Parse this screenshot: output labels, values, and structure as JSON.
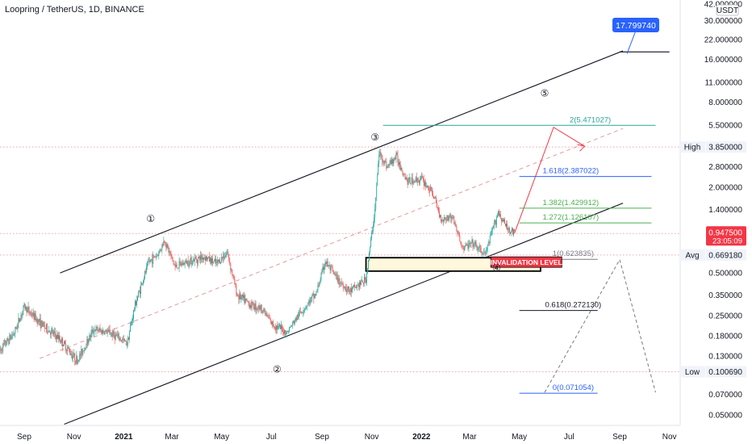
{
  "header": {
    "title": "Loopring / TetherUS, 1D, BINANCE",
    "unit": "USDT"
  },
  "chart_data": {
    "type": "candlestick",
    "scale": "log",
    "y_ticks": [
      "42.000000",
      "30.000000",
      "22.000000",
      "16.000000",
      "11.000000",
      "8.000000",
      "5.500000",
      "3.850000",
      "2.800000",
      "2.000000",
      "1.400000",
      "0.669180",
      "0.500000",
      "0.350000",
      "0.250000",
      "0.180000",
      "0.130000",
      "0.100690",
      "0.070000",
      "0.050000"
    ],
    "y_tick_values": [
      42,
      30,
      22,
      16,
      11,
      8,
      5.5,
      3.85,
      2.8,
      2.0,
      1.4,
      0.66918,
      0.5,
      0.35,
      0.25,
      0.18,
      0.13,
      0.10069,
      0.07,
      0.05
    ],
    "x_ticks": [
      {
        "label": "Sep",
        "date": "2020-09-01",
        "bold": false
      },
      {
        "label": "Nov",
        "date": "2020-11-01",
        "bold": false
      },
      {
        "label": "2021",
        "date": "2021-01-01",
        "bold": true
      },
      {
        "label": "Mar",
        "date": "2021-03-01",
        "bold": false
      },
      {
        "label": "May",
        "date": "2021-05-01",
        "bold": false
      },
      {
        "label": "Jul",
        "date": "2021-07-01",
        "bold": false
      },
      {
        "label": "Sep",
        "date": "2021-09-01",
        "bold": false
      },
      {
        "label": "Nov",
        "date": "2021-11-01",
        "bold": false
      },
      {
        "label": "2022",
        "date": "2022-01-01",
        "bold": true
      },
      {
        "label": "Mar",
        "date": "2022-03-01",
        "bold": false
      },
      {
        "label": "May",
        "date": "2022-05-01",
        "bold": false
      },
      {
        "label": "Jul",
        "date": "2022-07-01",
        "bold": false
      },
      {
        "label": "Sep",
        "date": "2022-09-01",
        "bold": false
      },
      {
        "label": "Nov",
        "date": "2022-11-01",
        "bold": false
      }
    ],
    "price_path": [
      {
        "date": "2020-08-01",
        "price": 0.14
      },
      {
        "date": "2020-08-20",
        "price": 0.19
      },
      {
        "date": "2020-09-01",
        "price": 0.29
      },
      {
        "date": "2020-09-25",
        "price": 0.21
      },
      {
        "date": "2020-10-15",
        "price": 0.17
      },
      {
        "date": "2020-11-05",
        "price": 0.12
      },
      {
        "date": "2020-11-25",
        "price": 0.2
      },
      {
        "date": "2020-12-15",
        "price": 0.19
      },
      {
        "date": "2021-01-05",
        "price": 0.16
      },
      {
        "date": "2021-01-15",
        "price": 0.3
      },
      {
        "date": "2021-02-01",
        "price": 0.6
      },
      {
        "date": "2021-02-12",
        "price": 0.68
      },
      {
        "date": "2021-02-20",
        "price": 0.85
      },
      {
        "date": "2021-03-05",
        "price": 0.55
      },
      {
        "date": "2021-03-20",
        "price": 0.6
      },
      {
        "date": "2021-04-10",
        "price": 0.65
      },
      {
        "date": "2021-04-25",
        "price": 0.58
      },
      {
        "date": "2021-05-08",
        "price": 0.7
      },
      {
        "date": "2021-05-20",
        "price": 0.35
      },
      {
        "date": "2021-06-05",
        "price": 0.3
      },
      {
        "date": "2021-06-20",
        "price": 0.28
      },
      {
        "date": "2021-07-01",
        "price": 0.22
      },
      {
        "date": "2021-07-20",
        "price": 0.19
      },
      {
        "date": "2021-08-05",
        "price": 0.26
      },
      {
        "date": "2021-08-25",
        "price": 0.36
      },
      {
        "date": "2021-09-05",
        "price": 0.6
      },
      {
        "date": "2021-09-20",
        "price": 0.45
      },
      {
        "date": "2021-10-05",
        "price": 0.37
      },
      {
        "date": "2021-10-25",
        "price": 0.45
      },
      {
        "date": "2021-11-05",
        "price": 1.4
      },
      {
        "date": "2021-11-10",
        "price": 3.5
      },
      {
        "date": "2021-11-20",
        "price": 2.8
      },
      {
        "date": "2021-12-01",
        "price": 3.3
      },
      {
        "date": "2021-12-15",
        "price": 2.2
      },
      {
        "date": "2022-01-01",
        "price": 2.3
      },
      {
        "date": "2022-01-15",
        "price": 1.8
      },
      {
        "date": "2022-01-25",
        "price": 1.2
      },
      {
        "date": "2022-02-08",
        "price": 1.25
      },
      {
        "date": "2022-02-20",
        "price": 0.75
      },
      {
        "date": "2022-03-05",
        "price": 0.8
      },
      {
        "date": "2022-03-20",
        "price": 0.67
      },
      {
        "date": "2022-04-05",
        "price": 1.35
      },
      {
        "date": "2022-04-15",
        "price": 1.05
      },
      {
        "date": "2022-04-25",
        "price": 0.9475
      }
    ],
    "current_price": {
      "label": "0.947500",
      "value": 0.9475,
      "countdown": "23:05:09",
      "color": "#f23645"
    },
    "high": {
      "label": "High",
      "value_label": "3.850000",
      "value": 3.85
    },
    "avg": {
      "label": "Avg",
      "value_label": "0.669180",
      "value": 0.66918
    },
    "low": {
      "label": "Low",
      "value_label": "0.100690",
      "value": 0.10069
    },
    "target": {
      "label": "17.799740",
      "value": 17.79974,
      "color": "#2962ff"
    },
    "fib_levels": [
      {
        "label": "2(5.471027)",
        "value": 5.471027,
        "color": "#26a69a",
        "from": "2021-11-15",
        "to": "2022-10-15"
      },
      {
        "label": "1.618(2.387022)",
        "value": 2.387022,
        "color": "#2962ff",
        "from": "2022-05-01",
        "to": "2022-10-10"
      },
      {
        "label": "1.382(1.429912)",
        "value": 1.429912,
        "color": "#4caf50",
        "from": "2022-05-01",
        "to": "2022-10-10"
      },
      {
        "label": "1.272(1.126107)",
        "value": 1.126107,
        "color": "#4caf50",
        "from": "2022-05-01",
        "to": "2022-10-10"
      },
      {
        "label": "1(0.623835)",
        "value": 0.623835,
        "color": "#787b86",
        "from": "2022-05-01",
        "to": "2022-08-05"
      },
      {
        "label": "0.618(0.272130)",
        "value": 0.27213,
        "color": "#131722",
        "from": "2022-05-01",
        "to": "2022-08-05"
      },
      {
        "label": "0(0.071054)",
        "value": 0.071054,
        "color": "#2962ff",
        "from": "2022-05-01",
        "to": "2022-08-05"
      }
    ],
    "waves": [
      {
        "label": "①",
        "date": "2021-02-03",
        "price": 1.2
      },
      {
        "label": "②",
        "date": "2021-07-08",
        "price": 0.105
      },
      {
        "label": "③",
        "date": "2021-11-05",
        "price": 4.5
      },
      {
        "label": "④",
        "date": "2022-04-03",
        "price": 0.54
      },
      {
        "label": "⑤",
        "date": "2022-06-01",
        "price": 9.2
      }
    ],
    "annotation": {
      "label": "INVALIDATION LEVEL",
      "color": "#f23645"
    }
  }
}
